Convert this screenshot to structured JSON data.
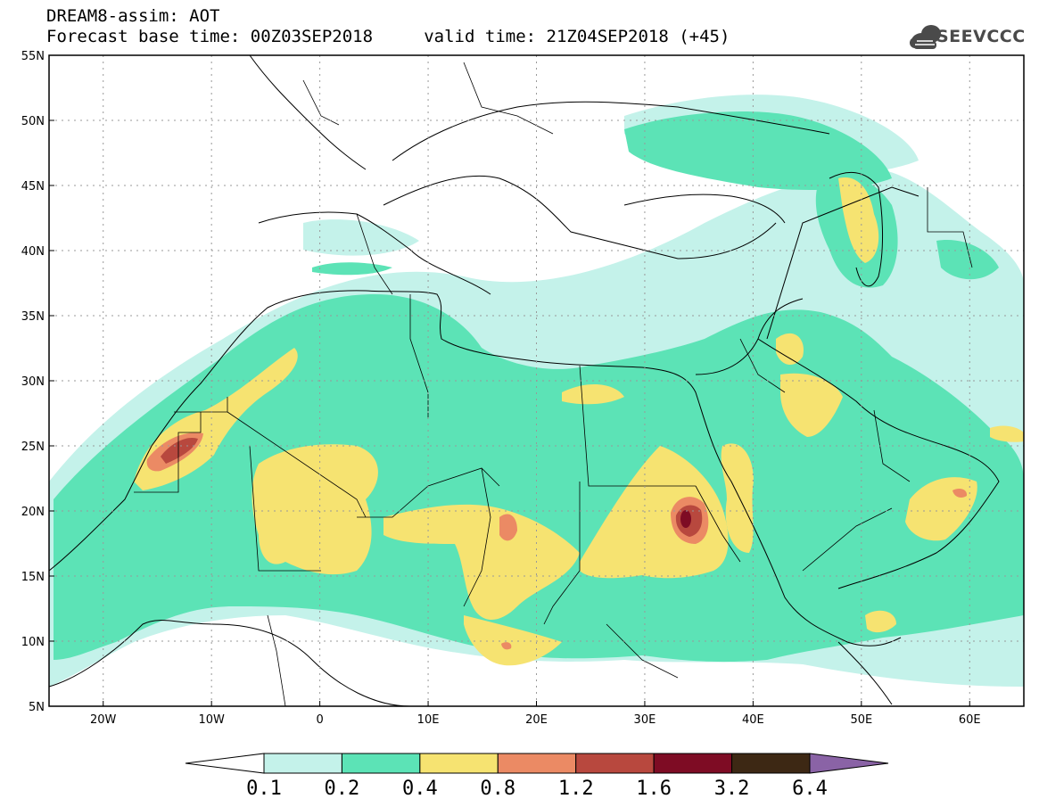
{
  "header": {
    "line1": "DREAM8-assim: AOT",
    "line2": "Forecast base time: 00Z03SEP2018     valid time: 21Z04SEP2018 (+45)"
  },
  "logo": {
    "text": "SEEVCCC",
    "icon": "cloud-icon",
    "color": "#4a4a4a"
  },
  "map": {
    "lon_range": [
      -25,
      65
    ],
    "lat_range": [
      5,
      55
    ],
    "lon_ticks": [
      {
        "value": -20,
        "label": "20W"
      },
      {
        "value": -10,
        "label": "10W"
      },
      {
        "value": 0,
        "label": "0"
      },
      {
        "value": 10,
        "label": "10E"
      },
      {
        "value": 20,
        "label": "20E"
      },
      {
        "value": 30,
        "label": "30E"
      },
      {
        "value": 40,
        "label": "40E"
      },
      {
        "value": 50,
        "label": "50E"
      },
      {
        "value": 60,
        "label": "60E"
      }
    ],
    "lat_ticks": [
      {
        "value": 55,
        "label": "55N"
      },
      {
        "value": 50,
        "label": "50N"
      },
      {
        "value": 45,
        "label": "45N"
      },
      {
        "value": 40,
        "label": "40N"
      },
      {
        "value": 35,
        "label": "35N"
      },
      {
        "value": 30,
        "label": "30N"
      },
      {
        "value": 25,
        "label": "25N"
      },
      {
        "value": 20,
        "label": "20N"
      },
      {
        "value": 15,
        "label": "15N"
      },
      {
        "value": 10,
        "label": "10N"
      },
      {
        "value": 5,
        "label": "5N"
      }
    ],
    "grid": "dotted"
  },
  "colorbar": {
    "colors": [
      "#ffffff",
      "#c4f2ea",
      "#5ce3b6",
      "#f6e371",
      "#eb8a64",
      "#b8483e",
      "#7e0c24",
      "#3d2814",
      "#8a63a6"
    ],
    "labels": [
      "0.1",
      "0.2",
      "0.4",
      "0.8",
      "1.2",
      "1.6",
      "3.2",
      "6.4"
    ]
  }
}
